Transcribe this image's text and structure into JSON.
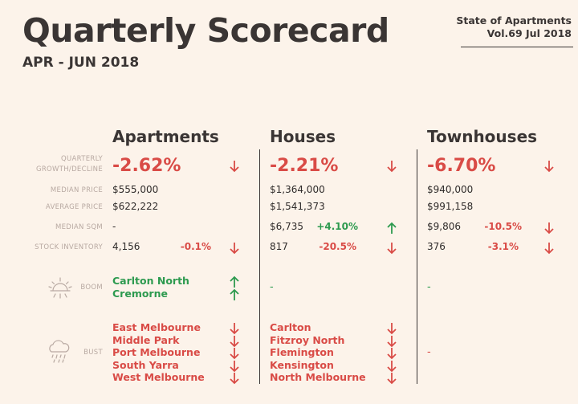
{
  "header": {
    "title": "Quarterly Scorecard",
    "period": "APR - JUN 2018",
    "publication_line1": "State of Apartments",
    "publication_line2": "Vol.69 Jul 2018"
  },
  "columns": [
    "Apartments",
    "Houses",
    "Townhouses"
  ],
  "row_labels": {
    "growth_line1": "QUARTERLY",
    "growth_line2": "GROWTH/DECLINE",
    "median_price": "MEDIAN PRICE",
    "average_price": "AVERAGE PRICE",
    "median_sqm": "MEDIAN SQM",
    "stock_inventory": "STOCK INVENTORY",
    "boom": "BOOM",
    "bust": "BUST"
  },
  "apartments": {
    "growth": "-2.62%",
    "median_price": "$555,000",
    "average_price": "$622,222",
    "median_sqm": "-",
    "stock": "4,156",
    "stock_change": "-0.1%",
    "boom": [
      "Carlton North",
      "Cremorne"
    ],
    "bust": [
      "East Melbourne",
      "Middle Park",
      "Port Melbourne",
      "South Yarra",
      "West Melbourne"
    ]
  },
  "houses": {
    "growth": "-2.21%",
    "median_price": "$1,364,000",
    "average_price": "$1,541,373",
    "median_sqm": "$6,735",
    "sqm_change": "+4.10%",
    "stock": "817",
    "stock_change": "-20.5%",
    "boom": "-",
    "bust": [
      "Carlton",
      "Fitzroy North",
      "Flemington",
      "Kensington",
      "North Melbourne"
    ]
  },
  "townhouses": {
    "growth": "-6.70%",
    "median_price": "$940,000",
    "average_price": "$991,158",
    "median_sqm": "$9,806",
    "sqm_change": "-10.5%",
    "stock": "376",
    "stock_change": "-3.1%",
    "boom": "-",
    "bust": "-"
  },
  "colors": {
    "background": "#fcf3ea",
    "negative": "#d94b46",
    "positive": "#2d9a4f",
    "label": "#b8a9a2",
    "text": "#2f2b2a"
  },
  "icons": {
    "boom": "sun-icon",
    "bust": "rain-cloud-icon",
    "down": "down-arrow-icon",
    "up": "up-arrow-icon"
  }
}
